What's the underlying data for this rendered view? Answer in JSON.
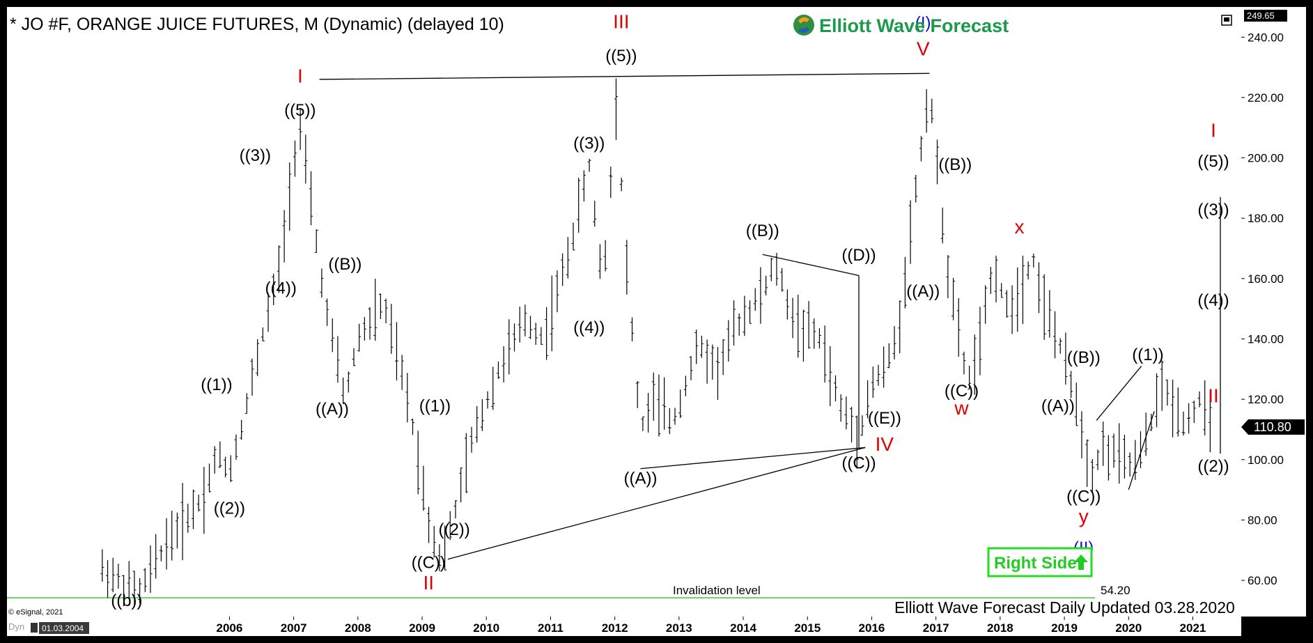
{
  "header": {
    "title": "* JO #F, ORANGE JUICE FUTURES, M (Dynamic) (delayed 10)",
    "brand": "Elliott Wave Forecast"
  },
  "footer": {
    "updated": "Elliott Wave Forecast Daily Updated 03.28.2020",
    "copyright": "© eSignal, 2021",
    "date_box": "01.03.2004",
    "corner_label": "Dyn"
  },
  "right_side_badge": "Right Side",
  "colors": {
    "background": "#ffffff",
    "frame": "#000000",
    "bars": "#000000",
    "wave_black": "#000000",
    "wave_red": "#e00000",
    "wave_blue": "#1010c8",
    "invalidation": "#3cc83c",
    "badge_border": "#22dd22",
    "badge_text": "#22cc22",
    "brand_text": "#1a9a4a",
    "price_tag_bg": "#000000"
  },
  "chart_data": {
    "type": "ohlc-bar",
    "title": "* JO #F, ORANGE JUICE FUTURES, M (Dynamic) (delayed 10)",
    "x_ticks": [
      "2006",
      "2007",
      "2008",
      "2009",
      "2010",
      "2011",
      "2012",
      "2013",
      "2014",
      "2015",
      "2016",
      "2017",
      "2018",
      "2019",
      "2020",
      "2021"
    ],
    "y_ticks": [
      "60.00",
      "80.00",
      "100.00",
      "120.00",
      "140.00",
      "160.00",
      "180.00",
      "200.00",
      "220.00",
      "240.00"
    ],
    "xlim": [
      2004.0,
      2022.6
    ],
    "ylim": [
      48,
      250
    ],
    "top_value": "249.65",
    "last_price": "110.80",
    "invalidation": {
      "label": "Invalidation level",
      "value_label": "54.20",
      "value": 54.2
    },
    "anchors": [
      [
        2004.0,
        64
      ],
      [
        2004.3,
        60
      ],
      [
        2004.6,
        56
      ],
      [
        2005.0,
        72
      ],
      [
        2005.3,
        80
      ],
      [
        2005.6,
        88
      ],
      [
        2005.8,
        102
      ],
      [
        2006.0,
        96
      ],
      [
        2006.2,
        112
      ],
      [
        2006.5,
        140
      ],
      [
        2006.8,
        165
      ],
      [
        2007.0,
        200
      ],
      [
        2007.1,
        210
      ],
      [
        2007.3,
        180
      ],
      [
        2007.5,
        150
      ],
      [
        2007.8,
        120
      ],
      [
        2008.0,
        140
      ],
      [
        2008.4,
        152
      ],
      [
        2008.8,
        118
      ],
      [
        2009.1,
        80
      ],
      [
        2009.3,
        66
      ],
      [
        2009.5,
        82
      ],
      [
        2009.8,
        108
      ],
      [
        2010.2,
        130
      ],
      [
        2010.6,
        146
      ],
      [
        2010.9,
        140
      ],
      [
        2011.3,
        170
      ],
      [
        2011.6,
        198
      ],
      [
        2011.8,
        160
      ],
      [
        2011.9,
        175
      ],
      [
        2012.0,
        225
      ],
      [
        2012.2,
        160
      ],
      [
        2012.4,
        110
      ],
      [
        2012.6,
        120
      ],
      [
        2012.9,
        112
      ],
      [
        2013.3,
        138
      ],
      [
        2013.6,
        130
      ],
      [
        2013.9,
        145
      ],
      [
        2014.3,
        155
      ],
      [
        2014.5,
        165
      ],
      [
        2014.8,
        145
      ],
      [
        2015.2,
        140
      ],
      [
        2015.5,
        118
      ],
      [
        2015.8,
        108
      ],
      [
        2016.0,
        125
      ],
      [
        2016.2,
        130
      ],
      [
        2016.4,
        140
      ],
      [
        2016.6,
        175
      ],
      [
        2016.9,
        225
      ],
      [
        2017.0,
        200
      ],
      [
        2017.2,
        160
      ],
      [
        2017.5,
        125
      ],
      [
        2017.7,
        140
      ],
      [
        2017.9,
        165
      ],
      [
        2018.1,
        150
      ],
      [
        2018.3,
        155
      ],
      [
        2018.5,
        168
      ],
      [
        2018.7,
        150
      ],
      [
        2018.9,
        140
      ],
      [
        2019.0,
        132
      ],
      [
        2019.2,
        118
      ],
      [
        2019.4,
        95
      ],
      [
        2019.6,
        104
      ],
      [
        2019.9,
        100
      ],
      [
        2020.1,
        98
      ],
      [
        2020.3,
        108
      ],
      [
        2020.5,
        125
      ],
      [
        2020.7,
        118
      ],
      [
        2020.9,
        112
      ],
      [
        2021.1,
        120
      ],
      [
        2021.3,
        110
      ]
    ],
    "wave_labels": [
      {
        "text": "((b))",
        "x": 2004.4,
        "y": 51.5,
        "color": "black"
      },
      {
        "text": "((1))",
        "x": 2005.8,
        "y": 123,
        "color": "black"
      },
      {
        "text": "((2))",
        "x": 2006.0,
        "y": 82,
        "color": "black"
      },
      {
        "text": "((3))",
        "x": 2006.4,
        "y": 199,
        "color": "black"
      },
      {
        "text": "((4))",
        "x": 2006.8,
        "y": 155,
        "color": "black"
      },
      {
        "text": "((5))",
        "x": 2007.1,
        "y": 214,
        "color": "black"
      },
      {
        "text": "I",
        "x": 2007.1,
        "y": 225,
        "color": "red"
      },
      {
        "text": "((B))",
        "x": 2007.8,
        "y": 163,
        "color": "black"
      },
      {
        "text": "((A))",
        "x": 2007.6,
        "y": 115,
        "color": "black"
      },
      {
        "text": "((1))",
        "x": 2009.2,
        "y": 116,
        "color": "black"
      },
      {
        "text": "((2))",
        "x": 2009.5,
        "y": 75,
        "color": "black"
      },
      {
        "text": "((C))",
        "x": 2009.1,
        "y": 64,
        "color": "black"
      },
      {
        "text": "II",
        "x": 2009.1,
        "y": 57,
        "color": "red"
      },
      {
        "text": "((3))",
        "x": 2011.6,
        "y": 203,
        "color": "black"
      },
      {
        "text": "((4))",
        "x": 2011.6,
        "y": 142,
        "color": "black"
      },
      {
        "text": "((5))",
        "x": 2012.1,
        "y": 232,
        "color": "black"
      },
      {
        "text": "III",
        "x": 2012.1,
        "y": 243,
        "color": "red"
      },
      {
        "text": "((A))",
        "x": 2012.4,
        "y": 92,
        "color": "black"
      },
      {
        "text": "((B))",
        "x": 2014.3,
        "y": 174,
        "color": "black"
      },
      {
        "text": "((D))",
        "x": 2015.8,
        "y": 166,
        "color": "black"
      },
      {
        "text": "((E))",
        "x": 2016.2,
        "y": 112,
        "color": "black"
      },
      {
        "text": "((C))",
        "x": 2015.8,
        "y": 97,
        "color": "black"
      },
      {
        "text": "IV",
        "x": 2016.2,
        "y": 103,
        "color": "red"
      },
      {
        "text": "(I)",
        "x": 2016.8,
        "y": 243,
        "color": "blue"
      },
      {
        "text": "V",
        "x": 2016.8,
        "y": 234,
        "color": "red"
      },
      {
        "text": "((B))",
        "x": 2017.3,
        "y": 196,
        "color": "black"
      },
      {
        "text": "((A))",
        "x": 2016.8,
        "y": 154,
        "color": "black"
      },
      {
        "text": "((C))",
        "x": 2017.4,
        "y": 121,
        "color": "black"
      },
      {
        "text": "w",
        "x": 2017.4,
        "y": 115,
        "color": "red"
      },
      {
        "text": "x",
        "x": 2018.3,
        "y": 175,
        "color": "red"
      },
      {
        "text": "((B))",
        "x": 2019.3,
        "y": 132,
        "color": "black"
      },
      {
        "text": "((A))",
        "x": 2018.9,
        "y": 116,
        "color": "black"
      },
      {
        "text": "((1))",
        "x": 2020.3,
        "y": 133,
        "color": "black"
      },
      {
        "text": "((C))",
        "x": 2019.3,
        "y": 86,
        "color": "black"
      },
      {
        "text": "y",
        "x": 2019.3,
        "y": 79,
        "color": "red"
      },
      {
        "text": "(II)",
        "x": 2019.3,
        "y": 69,
        "color": "blue"
      },
      {
        "text": "((2))",
        "x": 2021.6,
        "y": 96,
        "color": "black"
      },
      {
        "text": "((3))",
        "x": 2022.0,
        "y": 181,
        "color": "black"
      },
      {
        "text": "((4))",
        "x": 2022.2,
        "y": 151,
        "color": "black"
      },
      {
        "text": "((5))",
        "x": 2022.3,
        "y": 197,
        "color": "black"
      },
      {
        "text": "I",
        "x": 2022.3,
        "y": 207,
        "color": "red"
      },
      {
        "text": "II",
        "x": 2022.3,
        "y": 119,
        "color": "red"
      }
    ],
    "trend_lines": [
      {
        "name": "top-line",
        "points": [
          [
            2007.4,
            226
          ],
          [
            2016.9,
            228
          ]
        ]
      },
      {
        "name": "triangle-upper",
        "points": [
          [
            2014.3,
            168
          ],
          [
            2015.8,
            161
          ]
        ]
      },
      {
        "name": "triangle-lower",
        "points": [
          [
            2012.4,
            97
          ],
          [
            2015.9,
            104
          ]
        ]
      },
      {
        "name": "triangle-right",
        "points": [
          [
            2015.8,
            161
          ],
          [
            2015.8,
            104
          ]
        ]
      },
      {
        "name": "channel-lower",
        "points": [
          [
            2009.4,
            67
          ],
          [
            2015.9,
            104
          ]
        ]
      },
      {
        "name": "wave-1-diag",
        "points": [
          [
            2019.5,
            113
          ],
          [
            2020.2,
            131
          ]
        ]
      },
      {
        "name": "wave-1-diag-lower",
        "points": [
          [
            2020.0,
            90
          ],
          [
            2020.4,
            116
          ]
        ]
      }
    ],
    "projection": [
      [
        2021.6,
        102
      ],
      [
        2022.0,
        135
      ],
      [
        2022.1,
        121
      ],
      [
        2022.6,
        165
      ],
      [
        2022.7,
        151
      ],
      [
        2023.5,
        180
      ],
      [
        2023.6,
        154
      ],
      [
        2024.1,
        187
      ],
      [
        2024.6,
        130
      ],
      [
        2025.4,
        186
      ]
    ]
  }
}
